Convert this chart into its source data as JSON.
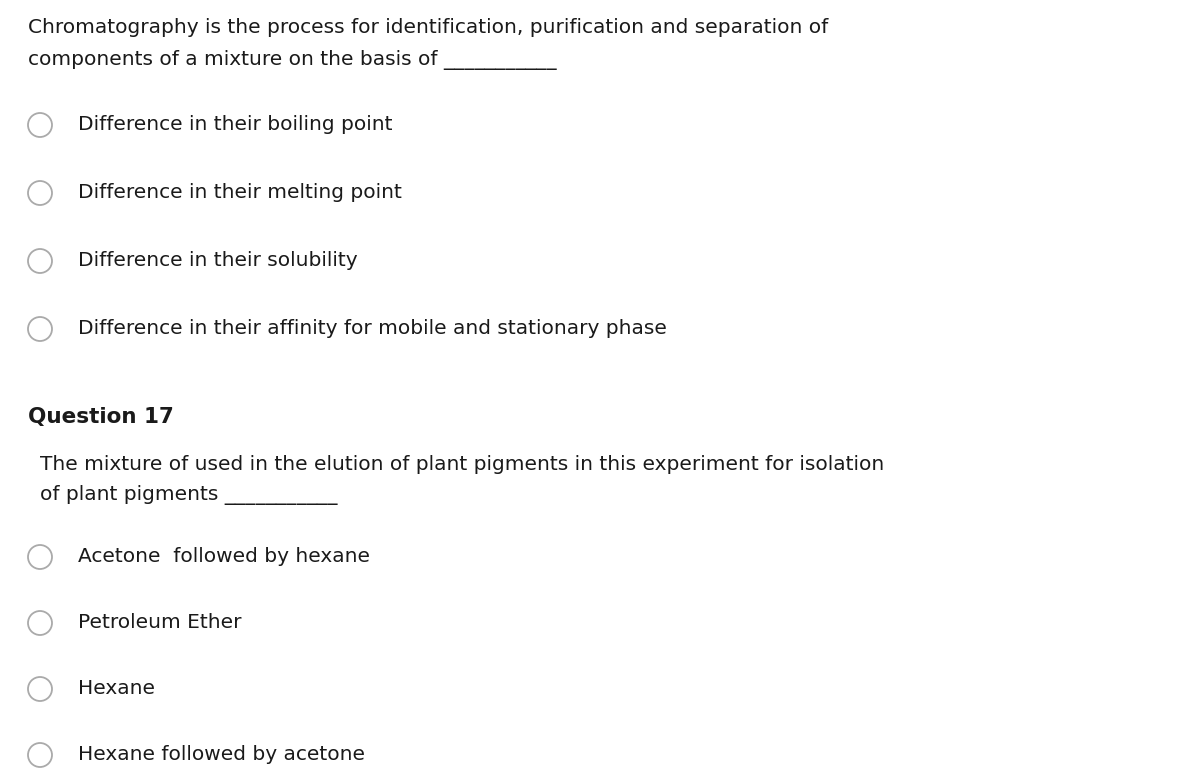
{
  "background_color": "#ffffff",
  "question_intro_line1": "Chromatography is the process for identification, purification and separation of",
  "question_intro_line2": "components of a mixture on the basis of ___________",
  "q1_options": [
    "Difference in their boiling point",
    "Difference in their melting point",
    "Difference in their solubility",
    "Difference in their affinity for mobile and stationary phase"
  ],
  "question17_label": "Question 17",
  "question17_text_line1": "The mixture of used in the elution of plant pigments in this experiment for isolation",
  "question17_text_line2": "of plant pigments ___________",
  "q2_options": [
    "Acetone  followed by hexane",
    "Petroleum Ether",
    "Hexane",
    "Hexane followed by acetone"
  ],
  "text_color": "#1a1a1a",
  "circle_edge_color": "#aaaaaa",
  "font_size_body": 14.5,
  "font_size_question_label": 15.5,
  "fig_width": 12.0,
  "fig_height": 7.73,
  "dpi": 100
}
